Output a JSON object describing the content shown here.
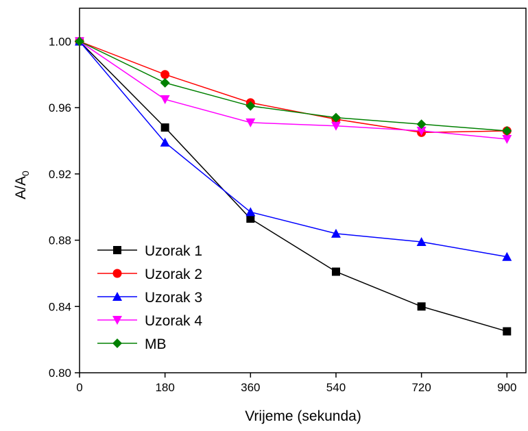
{
  "chart_data": {
    "type": "line",
    "title": "",
    "xlabel": "Vrijeme (sekunda)",
    "ylabel": "A/A",
    "ylabel_subscript": "0",
    "xlim": [
      0,
      940
    ],
    "ylim": [
      0.8,
      1.02
    ],
    "xticks": [
      0,
      180,
      360,
      540,
      720,
      900
    ],
    "yticks": [
      0.8,
      0.84,
      0.88,
      0.92,
      0.96,
      1.0
    ],
    "ytick_labels": [
      "0.80",
      "0.84",
      "0.88",
      "0.92",
      "0.96",
      "1.00"
    ],
    "grid": false,
    "legend_position": "bottom-left",
    "x": [
      0,
      180,
      360,
      540,
      720,
      900
    ],
    "series": [
      {
        "name": "Uzorak 1",
        "color": "#000000",
        "marker": "square",
        "values": [
          1.0,
          0.948,
          0.893,
          0.861,
          0.84,
          0.825
        ]
      },
      {
        "name": "Uzorak 2",
        "color": "#ff0000",
        "marker": "circle",
        "values": [
          1.0,
          0.98,
          0.963,
          0.953,
          0.945,
          0.946
        ]
      },
      {
        "name": "Uzorak 3",
        "color": "#0000ff",
        "marker": "triangle-up",
        "values": [
          1.0,
          0.939,
          0.897,
          0.884,
          0.879,
          0.87
        ]
      },
      {
        "name": "Uzorak 4",
        "color": "#ff00ff",
        "marker": "triangle-down",
        "values": [
          1.0,
          0.965,
          0.951,
          0.949,
          0.946,
          0.941
        ]
      },
      {
        "name": "MB",
        "color": "#008000",
        "marker": "diamond",
        "values": [
          1.0,
          0.975,
          0.961,
          0.954,
          0.95,
          0.946
        ]
      }
    ]
  }
}
